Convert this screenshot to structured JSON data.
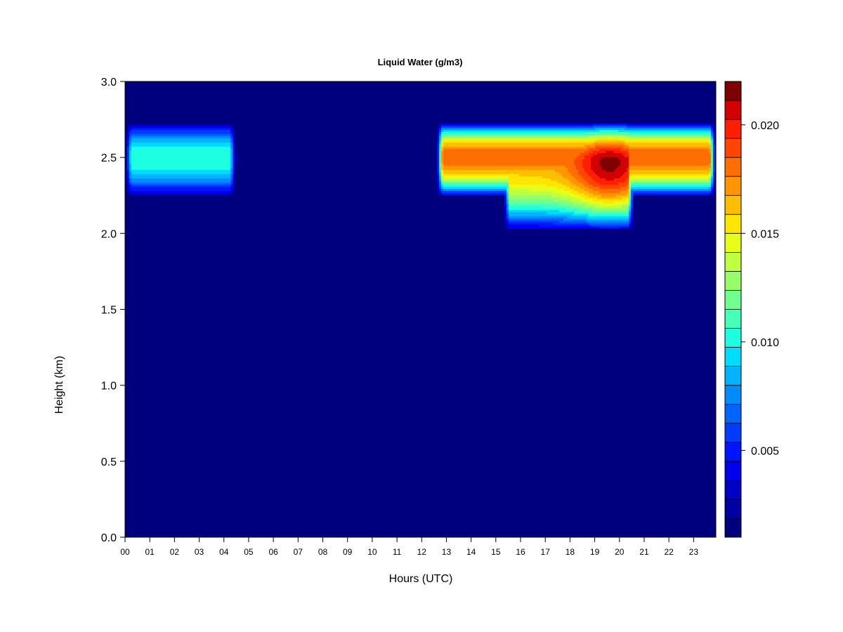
{
  "chart_data": {
    "type": "heatmap",
    "title": "Liquid Water (g/m3)",
    "xlabel": "Hours (UTC)",
    "ylabel": "Height (km)",
    "x_unit": "hour",
    "xlim": [
      0,
      23.9
    ],
    "ylim": [
      0.0,
      3.0
    ],
    "x_ticks": [
      "00",
      "01",
      "02",
      "03",
      "04",
      "05",
      "06",
      "07",
      "08",
      "09",
      "10",
      "11",
      "12",
      "13",
      "14",
      "15",
      "16",
      "17",
      "18",
      "19",
      "20",
      "21",
      "22",
      "23"
    ],
    "y_ticks": [
      "0.0",
      "0.5",
      "1.0",
      "1.5",
      "2.0",
      "2.5",
      "3.0"
    ],
    "colorbar": {
      "min": 0.001,
      "max": 0.022,
      "ticks": [
        "0.005",
        "0.010",
        "0.015",
        "0.020"
      ],
      "colors": [
        "#00007F",
        "#0000A3",
        "#0000C8",
        "#0000EC",
        "#0015FF",
        "#003CFF",
        "#0064FF",
        "#008CFF",
        "#00B4FF",
        "#00DCFF",
        "#1EFFE1",
        "#46FFB8",
        "#6EFF90",
        "#96FF68",
        "#BEFF40",
        "#E6FF18",
        "#FFE600",
        "#FFBE00",
        "#FF9600",
        "#FF6E00",
        "#FF4600",
        "#FF1E00",
        "#D20000",
        "#7F0000"
      ]
    },
    "cloud_layers": [
      {
        "hour_start": 0.0,
        "hour_end": 4.5,
        "base_km": 2.25,
        "top_km": 2.72,
        "center_km": 2.5,
        "peak_g_m3": 0.0105
      },
      {
        "hour_start": 12.6,
        "hour_end": 23.9,
        "base_km": 2.25,
        "top_km": 2.72,
        "center_km": 2.5,
        "peak_g_m3": 0.0185
      },
      {
        "hour_start": 15.3,
        "hour_end": 20.6,
        "base_km": 2.03,
        "top_km": 2.72,
        "center_km": 2.47,
        "peak_g_m3": 0.0215
      }
    ]
  }
}
